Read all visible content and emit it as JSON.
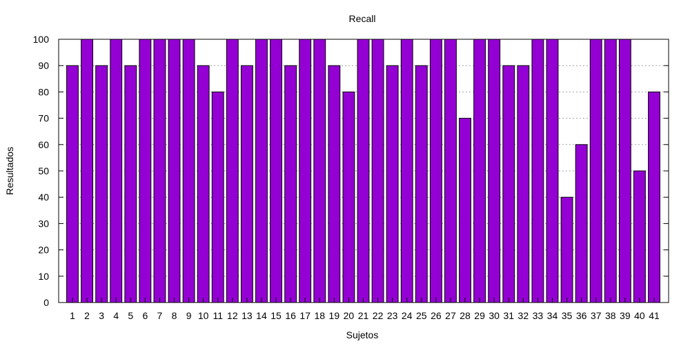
{
  "chart_data": {
    "type": "bar",
    "title": "Recall",
    "xlabel": "Sujetos",
    "ylabel": "Resultados",
    "ylim": [
      0,
      100
    ],
    "yticks": [
      0,
      10,
      20,
      30,
      40,
      50,
      60,
      70,
      80,
      90,
      100
    ],
    "grid": "horizontal dotted",
    "categories": [
      "1",
      "2",
      "3",
      "4",
      "5",
      "6",
      "7",
      "8",
      "9",
      "10",
      "11",
      "12",
      "13",
      "14",
      "15",
      "16",
      "17",
      "18",
      "19",
      "20",
      "21",
      "22",
      "23",
      "24",
      "25",
      "26",
      "27",
      "28",
      "29",
      "30",
      "31",
      "32",
      "33",
      "34",
      "35",
      "36",
      "37",
      "38",
      "39",
      "40",
      "41"
    ],
    "values": [
      90,
      100,
      90,
      100,
      90,
      100,
      100,
      100,
      100,
      90,
      80,
      100,
      90,
      100,
      100,
      90,
      100,
      100,
      90,
      80,
      100,
      100,
      90,
      100,
      90,
      100,
      100,
      70,
      100,
      100,
      90,
      90,
      100,
      100,
      40,
      60,
      100,
      100,
      100,
      50,
      80
    ],
    "bar_color": "#9400d3",
    "bar_edge_color": "#000000"
  }
}
